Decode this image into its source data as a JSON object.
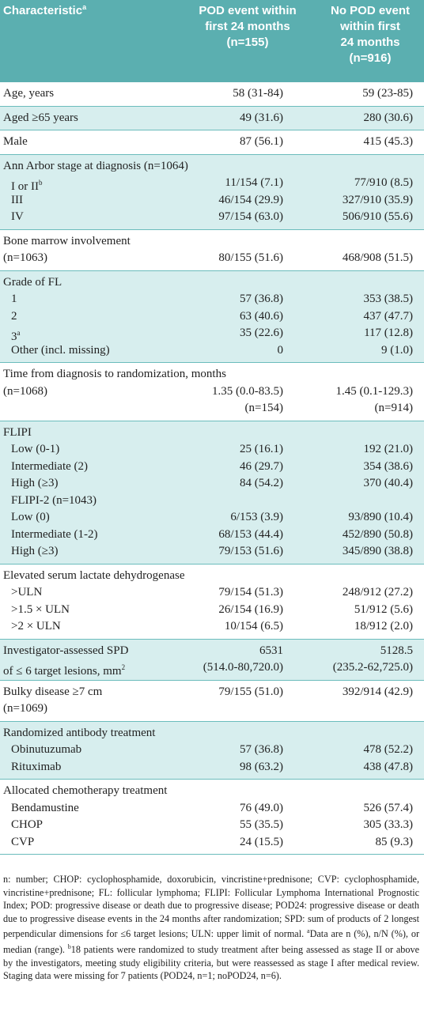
{
  "header": {
    "label": "Characteristic",
    "sup": "a",
    "columns": [
      [
        "POD event within",
        "first 24 months",
        "(n=155)"
      ],
      [
        "No POD event",
        "within first",
        "24 months",
        "(n=916)"
      ]
    ]
  },
  "blocks": [
    {
      "title": "Age, years",
      "cells": [
        "58 (31-84)",
        "59 (23-85)"
      ]
    },
    {
      "title": "Aged ≥65 years",
      "cells": [
        "49 (31.6)",
        "280 (30.6)"
      ]
    },
    {
      "title": "Male",
      "cells": [
        "87 (56.1)",
        "415 (45.3)"
      ]
    },
    {
      "title": "Ann Arbor stage at diagnosis (n=1064)",
      "items": [
        {
          "label": "I or II",
          "sup": "b",
          "cells": [
            "11/154 (7.1)",
            "77/910 (8.5)"
          ]
        },
        {
          "label": "III",
          "cells": [
            "46/154 (29.9)",
            "327/910 (35.9)"
          ]
        },
        {
          "label": "IV",
          "cells": [
            "97/154 (63.0)",
            "506/910 (55.6)"
          ]
        }
      ]
    },
    {
      "title": "Bone marrow involvement",
      "lines": [
        {
          "label": "(n=1063)",
          "cells": [
            "80/155 (51.6)",
            "468/908 (51.5)"
          ]
        }
      ]
    },
    {
      "title": "Grade of FL",
      "items": [
        {
          "label": "1",
          "cells": [
            "57 (36.8)",
            "353 (38.5)"
          ]
        },
        {
          "label": "2",
          "cells": [
            "63 (40.6)",
            "437 (47.7)"
          ]
        },
        {
          "label": "3",
          "sup": "a",
          "cells": [
            "35 (22.6)",
            "117 (12.8)"
          ]
        },
        {
          "label": "Other (incl. missing)",
          "cells": [
            "0",
            "9 (1.0)"
          ]
        }
      ]
    },
    {
      "title": "Time from diagnosis to randomization, months",
      "lines": [
        {
          "label": "(n=1068)",
          "cells": [
            "1.35 (0.0-83.5)",
            "1.45 (0.1-129.3)"
          ]
        },
        {
          "cells": [
            "(n=154)",
            "(n=914)"
          ]
        }
      ]
    },
    {
      "title": "FLIPI",
      "items": [
        {
          "label": "Low (0-1)",
          "cells": [
            "25 (16.1)",
            "192 (21.0)"
          ]
        },
        {
          "label": "Intermediate (2)",
          "cells": [
            "46 (29.7)",
            "354 (38.6)"
          ]
        },
        {
          "label": "High (≥3)",
          "cells": [
            "84 (54.2)",
            "370 (40.4)"
          ]
        },
        {
          "label": "FLIPI-2 (n=1043)"
        },
        {
          "label": "Low (0)",
          "cells": [
            "6/153 (3.9)",
            "93/890 (10.4)"
          ]
        },
        {
          "label": "Intermediate (1-2)",
          "cells": [
            "68/153 (44.4)",
            "452/890 (50.8)"
          ]
        },
        {
          "label": "High (≥3)",
          "cells": [
            "79/153 (51.6)",
            "345/890 (38.8)"
          ]
        }
      ]
    },
    {
      "title": "Elevated serum lactate dehydrogenase",
      "items": [
        {
          "label": ">ULN",
          "cells": [
            "79/154 (51.3)",
            "248/912 (27.2)"
          ]
        },
        {
          "label": ">1.5 × ULN",
          "cells": [
            "26/154 (16.9)",
            "51/912 (5.6)"
          ]
        },
        {
          "label": ">2 × ULN",
          "cells": [
            "10/154 (6.5)",
            "18/912 (2.0)"
          ]
        }
      ]
    },
    {
      "title": "Investigator-assessed SPD",
      "cells": [
        "6531",
        "5128.5"
      ],
      "lines": [
        {
          "label": "of ≤ 6 target lesions, mm",
          "sup": "2",
          "cells": [
            "(514.0-80,720.0)",
            "(235.2-62,725.0)"
          ]
        }
      ]
    },
    {
      "title": "Bulky disease ≥7 cm",
      "cells": [
        "79/155 (51.0)",
        "392/914 (42.9)"
      ],
      "lines": [
        {
          "label": "(n=1069)"
        }
      ]
    },
    {
      "title": "Randomized antibody treatment",
      "items": [
        {
          "label": "Obinutuzumab",
          "cells": [
            "57 (36.8)",
            "478 (52.2)"
          ]
        },
        {
          "label": "Rituximab",
          "cells": [
            "98 (63.2)",
            "438 (47.8)"
          ]
        }
      ]
    },
    {
      "title": "Allocated chemotherapy treatment",
      "items": [
        {
          "label": "Bendamustine",
          "cells": [
            "76 (49.0)",
            "526 (57.4)"
          ]
        },
        {
          "label": "CHOP",
          "cells": [
            "55 (35.5)",
            "305 (33.3)"
          ]
        },
        {
          "label": "CVP",
          "cells": [
            "24 (15.5)",
            "85 (9.3)"
          ]
        }
      ]
    }
  ],
  "footnote": [
    {
      "text": "n: number; CHOP: cyclophosphamide, doxorubicin, vincristine+prednisone; CVP: cyclophosphamide, vincristine+prednisone; FL: follicular lymphoma; FLIPI: Follicular Lymphoma International Prognostic Index; POD: progressive disease or death due to progressive disease; POD24: progressive disease or death due to progressive disease events in the 24 months after randomization; SPD: sum of products of 2 longest perpendicular dimensions for ≤6 target lesions; ULN: upper limit of normal. "
    },
    {
      "sup": "a"
    },
    {
      "text": "Data are n (%), n/N (%), or median (range). "
    },
    {
      "sup": "b"
    },
    {
      "text": "18 patients were randomized to study treatment after being assessed as stage II or above by the investigators, meeting study eligibility criteria, but were reassessed as stage I after medical review. Staging data were missing for 7 patients (POD24, n=1; noPOD24, n=6)."
    }
  ]
}
